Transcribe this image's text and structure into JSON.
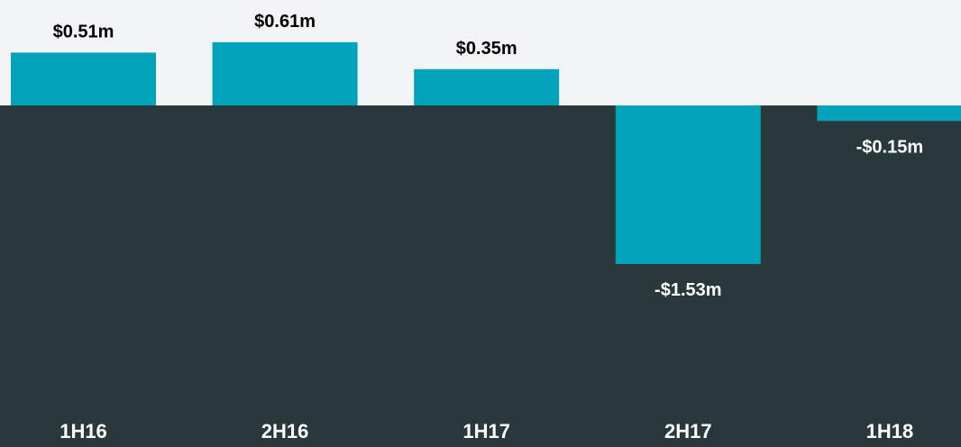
{
  "chart_data": {
    "type": "bar",
    "categories": [
      "1H16",
      "2H16",
      "1H17",
      "2H17",
      "1H18"
    ],
    "values": [
      0.51,
      0.61,
      0.35,
      -1.53,
      -0.15
    ],
    "value_labels": [
      "$0.51m",
      "$0.61m",
      "$0.35m",
      "-$1.53m",
      "-$0.15m"
    ],
    "color": "#00a3b9"
  }
}
